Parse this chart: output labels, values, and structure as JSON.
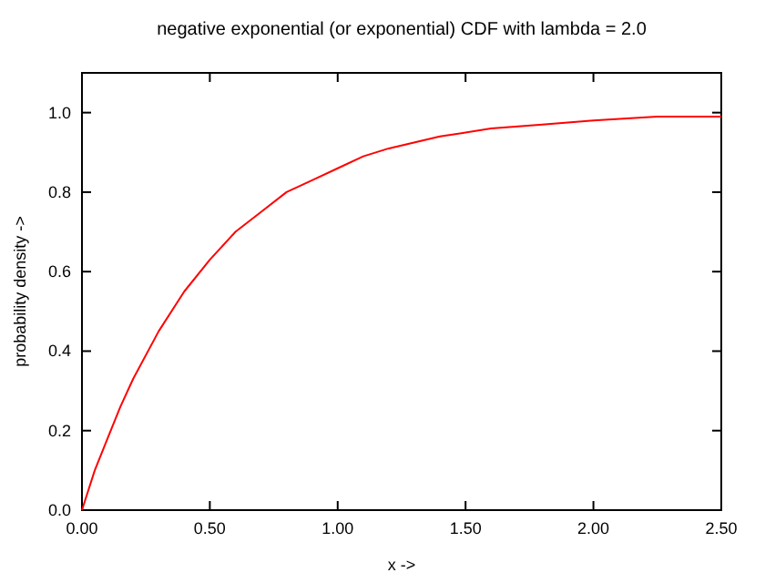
{
  "chart_data": {
    "type": "line",
    "title": "negative exponential (or exponential) CDF with lambda = 2.0",
    "xlabel": "x ->",
    "ylabel": "probability density ->",
    "x": [
      0,
      0.05,
      0.1,
      0.15,
      0.2,
      0.3,
      0.4,
      0.5,
      0.6,
      0.7,
      0.8,
      0.9,
      1.0,
      1.1,
      1.2,
      1.4,
      1.6,
      1.8,
      2.0,
      2.25,
      2.5
    ],
    "series": [
      {
        "color": "#ff0000",
        "values": [
          0,
          0.1,
          0.18,
          0.26,
          0.33,
          0.45,
          0.55,
          0.63,
          0.7,
          0.75,
          0.8,
          0.83,
          0.86,
          0.89,
          0.91,
          0.94,
          0.96,
          0.97,
          0.98,
          0.99,
          0.99
        ]
      }
    ],
    "xlim": [
      0,
      2.5
    ],
    "xticks": [
      {
        "value": 0,
        "label": "0.00"
      },
      {
        "value": 0.5,
        "label": "0.50"
      },
      {
        "value": 1,
        "label": "1.00"
      },
      {
        "value": 1.5,
        "label": "1.50"
      },
      {
        "value": 2,
        "label": "2.00"
      },
      {
        "value": 2.5,
        "label": "2.50"
      }
    ],
    "ylim": [
      0,
      1.1
    ],
    "yticks": [
      {
        "value": 0,
        "label": "0.0"
      },
      {
        "value": 0.2,
        "label": "0.2"
      },
      {
        "value": 0.4,
        "label": "0.4"
      },
      {
        "value": 0.6,
        "label": "0.6"
      },
      {
        "value": 0.8,
        "label": "0.8"
      },
      {
        "value": 1,
        "label": "1.0"
      }
    ],
    "grid": false,
    "marker": "none",
    "line_style": "solid"
  }
}
